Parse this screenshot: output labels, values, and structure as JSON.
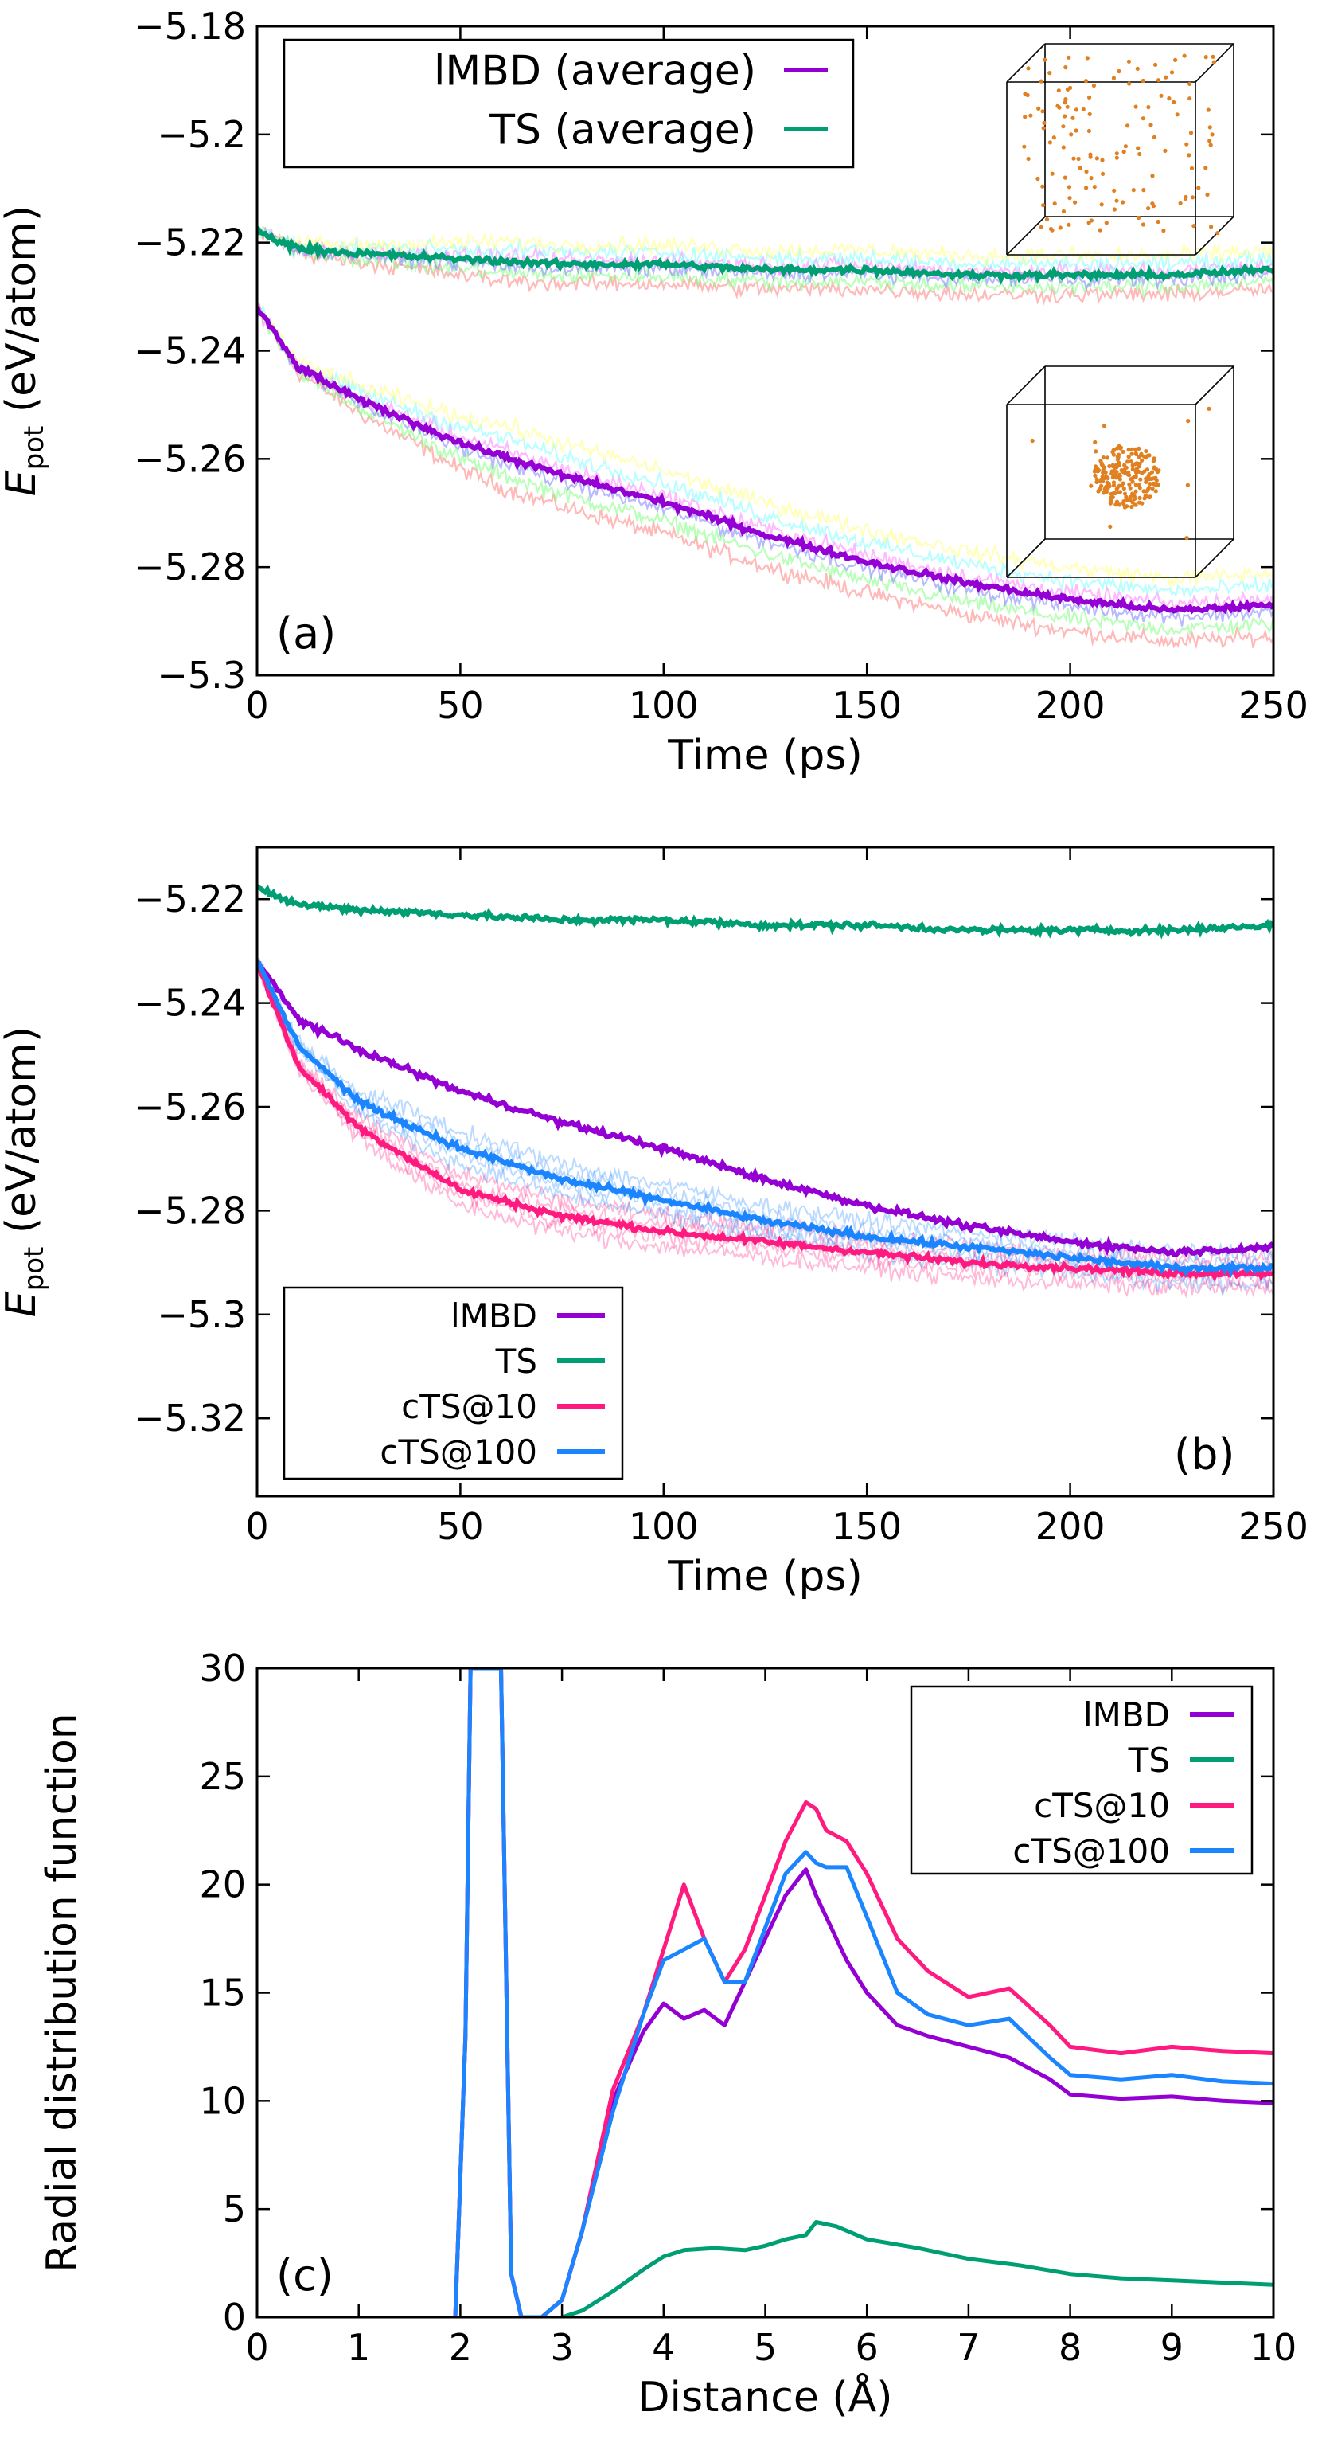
{
  "chart_data": [
    {
      "panel": "(a)",
      "type": "line",
      "xlabel": "Time (ps)",
      "ylabel": {
        "symbol": "E",
        "subscript": "pot",
        "unit": "(eV/atom)"
      },
      "xlim": [
        0,
        250
      ],
      "ylim": [
        -5.3,
        -5.18
      ],
      "xticks": [
        0,
        50,
        100,
        150,
        200,
        250
      ],
      "yticks": [
        -5.18,
        -5.2,
        -5.22,
        -5.24,
        -5.26,
        -5.28,
        -5.3
      ],
      "xtick_labels": [
        "0",
        "50",
        "100",
        "150",
        "200",
        "250"
      ],
      "ytick_labels": [
        "−5.18",
        "−5.2",
        "−5.22",
        "−5.24",
        "−5.26",
        "−5.28",
        "−5.3"
      ],
      "grid": false,
      "legend": {
        "placement": "top-left"
      },
      "insets": [
        {
          "name": "dispersed-structure",
          "placement": "top-right",
          "description": "spread-out atoms in box (TS)"
        },
        {
          "name": "clustered-structure",
          "placement": "right-middle",
          "description": "compact cluster in box (lMBD)"
        }
      ],
      "series": [
        {
          "name": "lMBD (average)",
          "color": "#9400d3",
          "x": [
            0,
            10,
            25,
            50,
            75,
            100,
            125,
            150,
            175,
            200,
            225,
            250
          ],
          "y": [
            -5.232,
            -5.243,
            -5.249,
            -5.257,
            -5.263,
            -5.268,
            -5.274,
            -5.279,
            -5.283,
            -5.286,
            -5.288,
            -5.287
          ]
        },
        {
          "name": "TS (average)",
          "color": "#009e73",
          "x": [
            0,
            10,
            25,
            50,
            75,
            100,
            125,
            150,
            175,
            200,
            225,
            250
          ],
          "y": [
            -5.218,
            -5.221,
            -5.222,
            -5.223,
            -5.224,
            -5.224,
            -5.225,
            -5.225,
            -5.226,
            -5.226,
            -5.226,
            -5.225
          ]
        }
      ],
      "faint_runs_colors": [
        "#ff8080",
        "#80ff80",
        "#8080ff",
        "#ff80ff",
        "#80ffff",
        "#ffff80"
      ],
      "panel_label": "(a)"
    },
    {
      "panel": "(b)",
      "type": "line",
      "xlabel": "Time (ps)",
      "ylabel": {
        "symbol": "E",
        "subscript": "pot",
        "unit": "(eV/atom)"
      },
      "xlim": [
        0,
        250
      ],
      "ylim": [
        -5.335,
        -5.21
      ],
      "xticks": [
        0,
        50,
        100,
        150,
        200,
        250
      ],
      "yticks": [
        -5.22,
        -5.24,
        -5.26,
        -5.28,
        -5.3,
        -5.32
      ],
      "xtick_labels": [
        "0",
        "50",
        "100",
        "150",
        "200",
        "250"
      ],
      "ytick_labels": [
        "−5.22",
        "−5.24",
        "−5.26",
        "−5.28",
        "−5.3",
        "−5.32"
      ],
      "grid": false,
      "legend": {
        "placement": "bottom-left"
      },
      "series": [
        {
          "name": "lMBD",
          "color": "#9400d3",
          "x": [
            0,
            10,
            25,
            50,
            75,
            100,
            125,
            150,
            175,
            200,
            225,
            250
          ],
          "y": [
            -5.232,
            -5.243,
            -5.249,
            -5.257,
            -5.263,
            -5.268,
            -5.274,
            -5.279,
            -5.283,
            -5.286,
            -5.288,
            -5.287
          ]
        },
        {
          "name": "TS",
          "color": "#009e73",
          "x": [
            0,
            10,
            25,
            50,
            75,
            100,
            125,
            150,
            175,
            200,
            225,
            250
          ],
          "y": [
            -5.218,
            -5.221,
            -5.222,
            -5.223,
            -5.224,
            -5.224,
            -5.225,
            -5.225,
            -5.226,
            -5.226,
            -5.226,
            -5.225
          ]
        },
        {
          "name": "cTS@10",
          "color": "#ff1a80",
          "x": [
            0,
            10,
            25,
            50,
            75,
            100,
            125,
            150,
            175,
            200,
            225,
            250
          ],
          "y": [
            -5.232,
            -5.252,
            -5.264,
            -5.276,
            -5.281,
            -5.284,
            -5.286,
            -5.288,
            -5.29,
            -5.291,
            -5.292,
            -5.292
          ]
        },
        {
          "name": "cTS@100",
          "color": "#1a85ff",
          "x": [
            0,
            10,
            25,
            50,
            75,
            100,
            125,
            150,
            175,
            200,
            225,
            250
          ],
          "y": [
            -5.232,
            -5.248,
            -5.259,
            -5.268,
            -5.274,
            -5.278,
            -5.282,
            -5.285,
            -5.287,
            -5.289,
            -5.291,
            -5.291
          ]
        }
      ],
      "panel_label": "(b)"
    },
    {
      "panel": "(c)",
      "type": "line",
      "xlabel": "Distance (Å)",
      "ylabel": "Radial distribution function",
      "xlim": [
        0,
        10
      ],
      "ylim": [
        0,
        30
      ],
      "xticks": [
        0,
        1,
        2,
        3,
        4,
        5,
        6,
        7,
        8,
        9,
        10
      ],
      "yticks": [
        0,
        5,
        10,
        15,
        20,
        25,
        30
      ],
      "xtick_labels": [
        "0",
        "1",
        "2",
        "3",
        "4",
        "5",
        "6",
        "7",
        "8",
        "9",
        "10"
      ],
      "ytick_labels": [
        "0",
        "5",
        "10",
        "15",
        "20",
        "25",
        "30"
      ],
      "grid": false,
      "legend": {
        "placement": "top-right"
      },
      "series": [
        {
          "name": "lMBD",
          "color": "#9400d3",
          "x": [
            1.95,
            2.05,
            2.1,
            2.4,
            2.5,
            2.6,
            2.8,
            3.0,
            3.2,
            3.5,
            3.8,
            4.0,
            4.2,
            4.4,
            4.6,
            4.8,
            5.0,
            5.2,
            5.4,
            5.5,
            5.6,
            5.8,
            6.0,
            6.3,
            6.6,
            7.0,
            7.4,
            7.8,
            8.0,
            8.5,
            9.0,
            9.5,
            10.0
          ],
          "y": [
            0,
            13,
            30,
            30,
            2,
            0,
            0,
            0.8,
            4,
            10,
            13.2,
            14.5,
            13.8,
            14.2,
            13.5,
            15.5,
            17.5,
            19.5,
            20.7,
            19.5,
            18.5,
            16.5,
            15,
            13.5,
            13,
            12.5,
            12,
            11,
            10.3,
            10.1,
            10.2,
            10,
            9.9
          ]
        },
        {
          "name": "TS",
          "color": "#009e73",
          "x": [
            3.0,
            3.2,
            3.5,
            3.8,
            4.0,
            4.2,
            4.5,
            4.8,
            5.0,
            5.2,
            5.4,
            5.5,
            5.7,
            6.0,
            6.5,
            7.0,
            7.5,
            8.0,
            8.5,
            9.0,
            9.5,
            10.0
          ],
          "y": [
            0,
            0.3,
            1.2,
            2.2,
            2.8,
            3.1,
            3.2,
            3.1,
            3.3,
            3.6,
            3.8,
            4.4,
            4.2,
            3.6,
            3.2,
            2.7,
            2.4,
            2.0,
            1.8,
            1.7,
            1.6,
            1.5
          ]
        },
        {
          "name": "cTS@10",
          "color": "#ff1a80",
          "x": [
            1.95,
            2.05,
            2.1,
            2.4,
            2.5,
            2.6,
            2.8,
            3.0,
            3.2,
            3.5,
            3.8,
            4.0,
            4.2,
            4.4,
            4.6,
            4.8,
            5.0,
            5.2,
            5.4,
            5.5,
            5.6,
            5.8,
            6.0,
            6.3,
            6.6,
            7.0,
            7.4,
            7.8,
            8.0,
            8.5,
            9.0,
            9.5,
            10.0
          ],
          "y": [
            0,
            13,
            30,
            30,
            2,
            0,
            0,
            0.8,
            4,
            10.5,
            14,
            17,
            20,
            17.5,
            15.5,
            17,
            19.5,
            22,
            23.8,
            23.5,
            22.5,
            22,
            20.5,
            17.5,
            16,
            14.8,
            15.2,
            13.5,
            12.5,
            12.2,
            12.5,
            12.3,
            12.2
          ]
        },
        {
          "name": "cTS@100",
          "color": "#1a85ff",
          "x": [
            1.95,
            2.05,
            2.1,
            2.4,
            2.5,
            2.6,
            2.8,
            3.0,
            3.2,
            3.5,
            3.8,
            4.0,
            4.2,
            4.4,
            4.6,
            4.8,
            5.0,
            5.2,
            5.4,
            5.5,
            5.6,
            5.8,
            6.0,
            6.3,
            6.6,
            7.0,
            7.4,
            7.8,
            8.0,
            8.5,
            9.0,
            9.5,
            10.0
          ],
          "y": [
            0,
            13,
            30,
            30,
            2,
            0,
            0,
            0.8,
            4,
            9.5,
            14,
            16.5,
            17,
            17.5,
            15.5,
            15.5,
            18,
            20.5,
            21.5,
            21,
            20.8,
            20.8,
            18.5,
            15,
            14,
            13.5,
            13.8,
            12,
            11.2,
            11,
            11.2,
            10.9,
            10.8
          ]
        }
      ],
      "panel_label": "(c)"
    }
  ]
}
